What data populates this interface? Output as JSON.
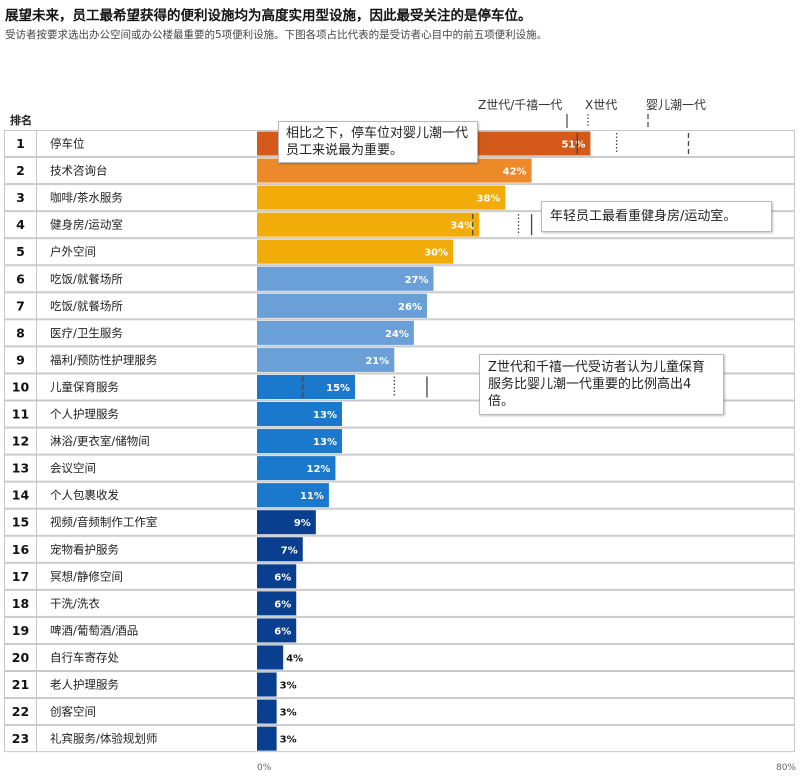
{
  "title": "展望未来，员工最希望获得的便利设施均为高度实用型设施，因此最受关注的是停车位。",
  "subtitle": "受访者按要求选出办公空间或办公楼最重要的5项便利设施。下图各项占比代表的是受访者心目中的前五项便利设施。",
  "chart_data": {
    "type": "bar",
    "orientation": "horizontal",
    "rank_header": "排名",
    "axis_min_label": "0%",
    "axis_max_label": "80%",
    "xlim": [
      0,
      80
    ],
    "value_suffix": "%",
    "generation_legend": [
      {
        "name": "Z世代/千禧一代",
        "style": "solid"
      },
      {
        "name": "X世代",
        "style": "dotted"
      },
      {
        "name": "婴儿潮一代",
        "style": "dashed"
      }
    ],
    "rows": [
      {
        "rank": 1,
        "label": "停车位",
        "value": 51,
        "color": "#d35a1a",
        "markers": {
          "gen_z_millennial": 49,
          "gen_x": 55,
          "boomer": 66
        }
      },
      {
        "rank": 2,
        "label": "技术咨询台",
        "value": 42,
        "color": "#ec8a2a"
      },
      {
        "rank": 3,
        "label": "咖啡/茶水服务",
        "value": 38,
        "color": "#f2ac0a"
      },
      {
        "rank": 4,
        "label": "健身房/运动室",
        "value": 34,
        "color": "#f2ac0a",
        "markers": {
          "boomer": 33,
          "gen_x": 40,
          "gen_z_millennial": 42
        }
      },
      {
        "rank": 5,
        "label": "户外空间",
        "value": 30,
        "color": "#f2ac0a"
      },
      {
        "rank": 6,
        "label": "吃饭/就餐场所",
        "value": 27,
        "color": "#6b9fd8"
      },
      {
        "rank": 7,
        "label": "吃饭/就餐场所",
        "value": 26,
        "color": "#6b9fd8"
      },
      {
        "rank": 8,
        "label": "医疗/卫生服务",
        "value": 24,
        "color": "#6b9fd8"
      },
      {
        "rank": 9,
        "label": "福利/预防性护理服务",
        "value": 21,
        "color": "#6b9fd8"
      },
      {
        "rank": 10,
        "label": "儿童保育服务",
        "value": 15,
        "color": "#1a79cc",
        "markers": {
          "boomer": 7,
          "gen_x": 21,
          "gen_z_millennial": 26
        }
      },
      {
        "rank": 11,
        "label": "个人护理服务",
        "value": 13,
        "color": "#1a79cc"
      },
      {
        "rank": 12,
        "label": "淋浴/更衣室/储物间",
        "value": 13,
        "color": "#1a79cc"
      },
      {
        "rank": 13,
        "label": "会议空间",
        "value": 12,
        "color": "#1a79cc"
      },
      {
        "rank": 14,
        "label": "个人包裹收发",
        "value": 11,
        "color": "#1a79cc"
      },
      {
        "rank": 15,
        "label": "视频/音频制作工作室",
        "value": 9,
        "color": "#0a3f8f"
      },
      {
        "rank": 16,
        "label": "宠物看护服务",
        "value": 7,
        "color": "#0a3f8f"
      },
      {
        "rank": 17,
        "label": "冥想/静修空间",
        "value": 6,
        "color": "#0a3f8f"
      },
      {
        "rank": 18,
        "label": "干洗/洗衣",
        "value": 6,
        "color": "#0a3f8f"
      },
      {
        "rank": 19,
        "label": "啤酒/葡萄酒/酒品",
        "value": 6,
        "color": "#0a3f8f"
      },
      {
        "rank": 20,
        "label": "自行车寄存处",
        "value": 4,
        "color": "#0a3f8f"
      },
      {
        "rank": 21,
        "label": "老人护理服务",
        "value": 3,
        "color": "#0a3f8f"
      },
      {
        "rank": 22,
        "label": "创客空间",
        "value": 3,
        "color": "#0a3f8f"
      },
      {
        "rank": 23,
        "label": "礼宾服务/体验规划师",
        "value": 3,
        "color": "#0a3f8f"
      }
    ],
    "annotations": [
      {
        "text": "相比之下，停车位对婴儿潮一代员工来说最为重要。",
        "row": 1
      },
      {
        "text": "年轻员工最看重健身房/运动室。",
        "row": 4
      },
      {
        "text": "Z世代和千禧一代受访者认为儿童保育服务比婴儿潮一代重要的比例高出4倍。",
        "row": 10
      }
    ]
  }
}
